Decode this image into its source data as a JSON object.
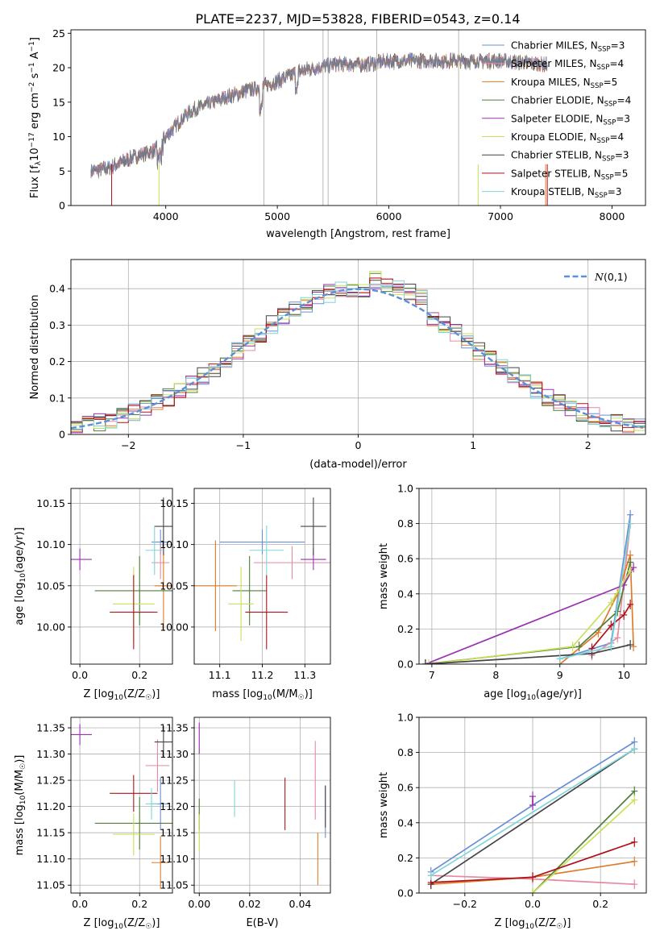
{
  "figure": {
    "title": "PLATE=2237, MJD=53828, FIBERID=0543, z=0.14"
  },
  "models": [
    {
      "label": "Chabrier MILES, N$_{SSP}$=3",
      "sup": "SSP",
      "prefix": "Chabrier MILES, N",
      "suffix": "=3",
      "color": "#6a8fd6"
    },
    {
      "label": "Salpeter MILES, N$_{SSP}$=4",
      "sup": "SSP",
      "prefix": "Salpeter MILES, N",
      "suffix": "=4",
      "color": "#e68a9f"
    },
    {
      "label": "Kroupa MILES, N$_{SSP}$=5",
      "sup": "SSP",
      "prefix": "Kroupa MILES, N",
      "suffix": "=5",
      "color": "#e07b2a"
    },
    {
      "label": "Chabrier ELODIE, N$_{SSP}$=4",
      "sup": "SSP",
      "prefix": "Chabrier ELODIE, N",
      "suffix": "=4",
      "color": "#4f7f3a"
    },
    {
      "label": "Salpeter ELODIE, N$_{SSP}$=3",
      "sup": "SSP",
      "prefix": "Salpeter ELODIE, N",
      "suffix": "=3",
      "color": "#9b30b0"
    },
    {
      "label": "Kroupa ELODIE, N$_{SSP}$=4",
      "sup": "SSP",
      "prefix": "Kroupa ELODIE, N",
      "suffix": "=4",
      "color": "#c8e05a"
    },
    {
      "label": "Chabrier STELIB, N$_{SSP}$=3",
      "sup": "SSP",
      "prefix": "Chabrier STELIB, N",
      "suffix": "=3",
      "color": "#444444"
    },
    {
      "label": "Salpeter STELIB, N$_{SSP}$=5",
      "sup": "SSP",
      "prefix": "Salpeter STELIB, N",
      "suffix": "=5",
      "color": "#b0121b"
    },
    {
      "label": "Kroupa STELIB, N$_{SSP}$=3",
      "sup": "SSP",
      "prefix": "Kroupa STELIB, N",
      "suffix": "=3",
      "color": "#7fd6d8"
    }
  ],
  "chart_data": [
    {
      "id": "spectrum",
      "type": "line",
      "xlabel": "wavelength [Angstrom, rest frame]",
      "ylabel_parts": [
        "Flux [f",
        "λ",
        "10",
        "−17",
        " erg cm",
        "−2",
        " s",
        "−1",
        " A",
        "−1",
        "]"
      ],
      "xlim": [
        3150,
        8300
      ],
      "ylim": [
        0,
        25.5
      ],
      "xticks": [
        4000,
        5000,
        6000,
        7000,
        8000
      ],
      "yticks": [
        0,
        5,
        10,
        15,
        20,
        25
      ],
      "wavelength_range": [
        3330,
        7420
      ],
      "flux_profile": {
        "x": [
          3330,
          3500,
          3700,
          3900,
          3950,
          4000,
          4200,
          4500,
          4800,
          5000,
          5200,
          5500,
          5800,
          6000,
          6500,
          7000,
          7420
        ],
        "y": [
          5,
          5.5,
          7,
          8,
          9,
          10,
          13.5,
          15.5,
          17,
          18,
          19.5,
          20.5,
          20.5,
          21,
          21,
          21,
          20.5
        ]
      },
      "sky_line_spikes": [
        4880,
        5410,
        5455,
        5890,
        6625
      ],
      "grid": false,
      "legend_loc": "upper right"
    },
    {
      "id": "residual_hist",
      "type": "histogram",
      "xlabel": "(data-model)/error",
      "ylabel": "Normed distribution",
      "xlim": [
        -2.5,
        2.5
      ],
      "ylim": [
        0,
        0.48
      ],
      "xticks": [
        -2,
        -1,
        0,
        1,
        2
      ],
      "yticks": [
        0,
        0.1,
        0.2,
        0.3,
        0.4
      ],
      "bin_width": 0.1,
      "reference": {
        "label": "N(0,1)",
        "mean": 0,
        "sigma": 1,
        "color": "#5b8fd6",
        "style": "dashed"
      },
      "grid": true,
      "legend_loc": "upper right"
    },
    {
      "id": "age_vs_Z",
      "type": "errorbar",
      "xlabel_prefix": "Z [log",
      "xlabel_sub": "10",
      "xlabel_suffix": "(Z/Z",
      "xlabel_sun": "☉",
      "xlabel_end": ")]",
      "ylabel_prefix": "age  [log",
      "ylabel_sub": "10",
      "ylabel_suffix": "(age/yr)]",
      "xlim": [
        -0.03,
        0.31
      ],
      "ylim": [
        9.955,
        10.168
      ],
      "xticks": [
        0.0,
        0.2
      ],
      "yticks": [
        10.0,
        10.05,
        10.1,
        10.15
      ],
      "points": [
        {
          "x": 0.27,
          "xerr": 0.03,
          "y": 10.103,
          "yerr": 0.015
        },
        {
          "x": 0.27,
          "xerr": 0.03,
          "y": 10.078,
          "yerr": 0.02
        },
        {
          "x": 0.28,
          "xerr": 0.03,
          "y": 10.05,
          "yerr": 0.055
        },
        {
          "x": 0.2,
          "xerr": 0.15,
          "y": 10.044,
          "yerr": 0.042
        },
        {
          "x": 0.0,
          "xerr": 0.04,
          "y": 10.082,
          "yerr": 0.013
        },
        {
          "x": 0.18,
          "xerr": 0.07,
          "y": 10.028,
          "yerr": 0.045
        },
        {
          "x": 0.28,
          "xerr": 0.03,
          "y": 10.122,
          "yerr": 0.035
        },
        {
          "x": 0.18,
          "xerr": 0.08,
          "y": 10.018,
          "yerr": 0.045
        },
        {
          "x": 0.25,
          "xerr": 0.03,
          "y": 10.093,
          "yerr": 0.03
        }
      ],
      "grid": true
    },
    {
      "id": "age_vs_mass",
      "type": "errorbar",
      "xlabel_prefix": "mass [log",
      "xlabel_sub": "10",
      "xlabel_suffix": "(M/M",
      "xlabel_sun": "☉",
      "xlabel_end": ")]",
      "xlim": [
        11.04,
        11.36
      ],
      "ylim": [
        9.955,
        10.168
      ],
      "xticks": [
        11.1,
        11.2,
        11.3
      ],
      "yticks": [
        10.0,
        10.05,
        10.1,
        10.15
      ],
      "points": [
        {
          "x": 11.2,
          "xerr": 0.1,
          "y": 10.103,
          "yerr": 0.015
        },
        {
          "x": 11.27,
          "xerr": 0.09,
          "y": 10.078,
          "yerr": 0.02
        },
        {
          "x": 11.09,
          "xerr": 0.05,
          "y": 10.05,
          "yerr": 0.055
        },
        {
          "x": 11.17,
          "xerr": 0.04,
          "y": 10.044,
          "yerr": 0.042
        },
        {
          "x": 11.32,
          "xerr": 0.03,
          "y": 10.082,
          "yerr": 0.013
        },
        {
          "x": 11.15,
          "xerr": 0.03,
          "y": 10.028,
          "yerr": 0.045
        },
        {
          "x": 11.32,
          "xerr": 0.03,
          "y": 10.122,
          "yerr": 0.035
        },
        {
          "x": 11.21,
          "xerr": 0.05,
          "y": 10.018,
          "yerr": 0.045
        },
        {
          "x": 11.21,
          "xerr": 0.04,
          "y": 10.093,
          "yerr": 0.03
        }
      ],
      "grid": true
    },
    {
      "id": "weight_vs_age",
      "type": "line",
      "xlabel_prefix": "age  [log",
      "xlabel_sub": "10",
      "xlabel_suffix": "(age/yr)]",
      "ylabel": "mass weight",
      "xlim": [
        6.8,
        10.35
      ],
      "ylim": [
        0,
        1.0
      ],
      "xticks": [
        7,
        8,
        9,
        10
      ],
      "yticks": [
        0,
        0.2,
        0.4,
        0.6,
        0.8,
        1.0
      ],
      "series": [
        {
          "x": [
            9.0,
            9.8,
            10.1
          ],
          "y": [
            0.03,
            0.12,
            0.85
          ]
        },
        {
          "x": [
            9.5,
            9.9,
            10.1
          ],
          "y": [
            0.05,
            0.15,
            0.8
          ]
        },
        {
          "x": [
            9.0,
            9.6,
            9.9,
            10.1,
            10.15
          ],
          "y": [
            0.0,
            0.18,
            0.4,
            0.62,
            0.1
          ]
        },
        {
          "x": [
            6.9,
            9.3,
            9.9,
            10.1
          ],
          "y": [
            0.0,
            0.1,
            0.3,
            0.58
          ]
        },
        {
          "x": [
            6.9,
            10.0,
            10.15
          ],
          "y": [
            0.0,
            0.45,
            0.55
          ]
        },
        {
          "x": [
            6.95,
            9.2,
            9.8,
            10.1
          ],
          "y": [
            0.0,
            0.1,
            0.35,
            0.53
          ]
        },
        {
          "x": [
            6.9,
            9.5,
            10.1
          ],
          "y": [
            0.0,
            0.06,
            0.11
          ]
        },
        {
          "x": [
            9.5,
            9.8,
            10.0,
            10.1
          ],
          "y": [
            0.09,
            0.22,
            0.28,
            0.34
          ]
        },
        {
          "x": [
            9.0,
            9.8,
            10.1
          ],
          "y": [
            0.03,
            0.1,
            0.8
          ]
        }
      ],
      "grid": true
    },
    {
      "id": "mass_vs_Z",
      "type": "errorbar",
      "xlabel_prefix": "Z [log",
      "xlabel_sub": "10",
      "xlabel_suffix": "(Z/Z",
      "xlabel_sun": "☉",
      "xlabel_end": ")]",
      "ylabel_prefix": "mass [log",
      "ylabel_sub": "10",
      "ylabel_suffix": "(M/M",
      "ylabel_sun": "☉",
      "ylabel_end": ")]",
      "xlim": [
        -0.03,
        0.31
      ],
      "ylim": [
        11.035,
        11.37
      ],
      "xticks": [
        0.0,
        0.2
      ],
      "yticks": [
        11.05,
        11.1,
        11.15,
        11.2,
        11.25,
        11.3,
        11.35
      ],
      "points": [
        {
          "x": 0.27,
          "xerr": 0.03,
          "y": 11.205,
          "yerr": 0.05
        },
        {
          "x": 0.26,
          "xerr": 0.04,
          "y": 11.278,
          "yerr": 0.05
        },
        {
          "x": 0.27,
          "xerr": 0.03,
          "y": 11.093,
          "yerr": 0.05
        },
        {
          "x": 0.2,
          "xerr": 0.15,
          "y": 11.168,
          "yerr": 0.05
        },
        {
          "x": 0.0,
          "xerr": 0.04,
          "y": 11.337,
          "yerr": 0.02
        },
        {
          "x": 0.18,
          "xerr": 0.07,
          "y": 11.147,
          "yerr": 0.04
        },
        {
          "x": 0.28,
          "xerr": 0.03,
          "y": 11.323,
          "yerr": 0.03
        },
        {
          "x": 0.18,
          "xerr": 0.08,
          "y": 11.225,
          "yerr": 0.035
        },
        {
          "x": 0.24,
          "xerr": 0.02,
          "y": 11.205,
          "yerr": 0.03
        }
      ],
      "grid": true
    },
    {
      "id": "mass_vs_ebv",
      "type": "errorbar",
      "xlabel": "E(B-V)",
      "xlim": [
        -0.002,
        0.052
      ],
      "ylim": [
        11.035,
        11.37
      ],
      "xticks": [
        0.0,
        0.02,
        0.04
      ],
      "yticks": [
        11.05,
        11.1,
        11.15,
        11.2,
        11.25,
        11.3,
        11.35
      ],
      "points": [
        {
          "x": 0.05,
          "xerr": 0,
          "y": 11.19,
          "yerr": 0.05
        },
        {
          "x": 0.046,
          "xerr": 0,
          "y": 11.25,
          "yerr": 0.075
        },
        {
          "x": 0.047,
          "xerr": 0,
          "y": 11.1,
          "yerr": 0.05
        },
        {
          "x": 0.0,
          "xerr": 0,
          "y": 11.185,
          "yerr": 0.03
        },
        {
          "x": 0.0,
          "xerr": 0,
          "y": 11.33,
          "yerr": 0.03
        },
        {
          "x": 0.0,
          "xerr": 0,
          "y": 11.15,
          "yerr": 0.035
        },
        {
          "x": 0.05,
          "xerr": 0,
          "y": 11.2,
          "yerr": 0.04
        },
        {
          "x": 0.034,
          "xerr": 0,
          "y": 11.205,
          "yerr": 0.05
        },
        {
          "x": 0.014,
          "xerr": 0,
          "y": 11.215,
          "yerr": 0.035
        }
      ],
      "grid": true
    },
    {
      "id": "weight_vs_Z",
      "type": "line",
      "xlabel_prefix": "Z [log",
      "xlabel_sub": "10",
      "xlabel_suffix": "(Z/Z",
      "xlabel_sun": "☉",
      "xlabel_end": ")]",
      "ylabel": "mass weight",
      "xlim": [
        -0.335,
        0.335
      ],
      "ylim": [
        0,
        1.0
      ],
      "xticks": [
        -0.2,
        0.0,
        0.2
      ],
      "yticks": [
        0,
        0.2,
        0.4,
        0.6,
        0.8,
        1.0
      ],
      "series": [
        {
          "x": [
            -0.3,
            0.0,
            0.3
          ],
          "y": [
            0.12,
            0.5,
            0.86
          ]
        },
        {
          "x": [
            -0.3,
            0.0,
            0.3
          ],
          "y": [
            0.1,
            0.08,
            0.05
          ]
        },
        {
          "x": [
            -0.3,
            0.0,
            0.3
          ],
          "y": [
            0.05,
            0.09,
            0.18
          ]
        },
        {
          "x": [
            0.0,
            0.3
          ],
          "y": [
            0.0,
            0.58
          ]
        },
        {
          "x": [
            0.0,
            0.0
          ],
          "y": [
            0.5,
            0.55
          ]
        },
        {
          "x": [
            0.0,
            0.3
          ],
          "y": [
            0.0,
            0.53
          ]
        },
        {
          "x": [
            -0.3,
            0.3
          ],
          "y": [
            0.05,
            0.82
          ]
        },
        {
          "x": [
            -0.3,
            0.0,
            0.3
          ],
          "y": [
            0.06,
            0.09,
            0.29
          ]
        },
        {
          "x": [
            -0.3,
            0.3
          ],
          "y": [
            0.1,
            0.82
          ]
        }
      ],
      "grid": true
    }
  ]
}
